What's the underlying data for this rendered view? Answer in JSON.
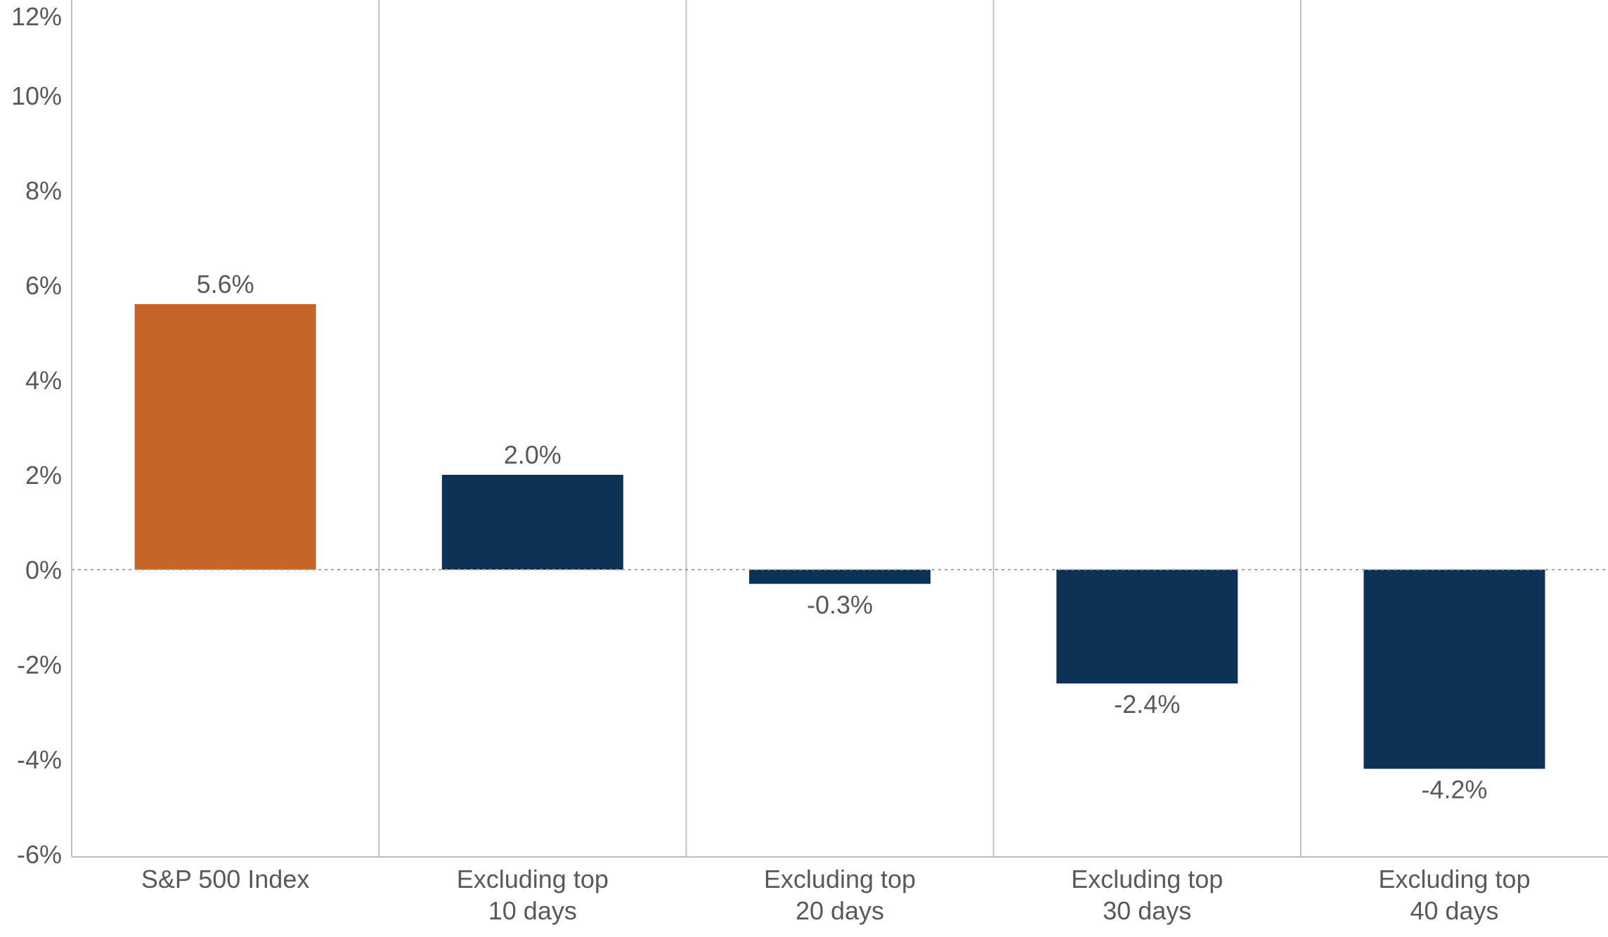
{
  "chart_data": {
    "type": "bar",
    "title": "",
    "xlabel": "",
    "ylabel": "",
    "categories": [
      [
        "S&P 500 Index"
      ],
      [
        "Excluding top",
        "10 days"
      ],
      [
        "Excluding top",
        "20 days"
      ],
      [
        "Excluding top",
        "30 days"
      ],
      [
        "Excluding top",
        "40 days"
      ]
    ],
    "values": [
      5.6,
      2.0,
      -0.3,
      -2.4,
      -4.2
    ],
    "data_labels": [
      "5.6%",
      "2.0%",
      "-0.3%",
      "-2.4%",
      "-4.2%"
    ],
    "ylim": [
      -6,
      12
    ],
    "yticks": [
      12,
      10,
      8,
      6,
      4,
      2,
      0,
      -2,
      -4,
      -6
    ],
    "ytick_labels": [
      "12%",
      "10%",
      "8%",
      "6%",
      "4%",
      "2%",
      "0%",
      "-2%",
      "-4%",
      "-6%"
    ],
    "grid": false,
    "zero_line": "dotted",
    "category_separators": true,
    "colors": {
      "highlight": "#C5652A",
      "bar": "#0C3256",
      "text": "#595959",
      "axis": "#BFBFBF",
      "zero_line": "#A6A6A6"
    },
    "bar_colors": [
      "highlight",
      "bar",
      "bar",
      "bar",
      "bar"
    ]
  }
}
